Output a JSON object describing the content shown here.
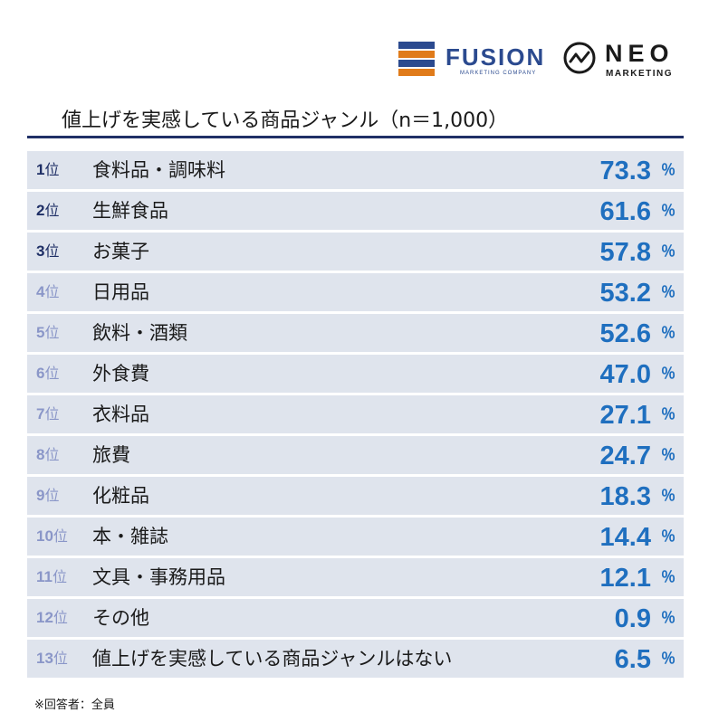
{
  "logos": {
    "fusion": {
      "name": "FUSION",
      "sub": "MARKETING COMPANY"
    },
    "neo": {
      "name": "NEO",
      "sub": "MARKETING"
    }
  },
  "title": "値上げを実感している商品ジャンル（n＝1,000）",
  "rank_unit": "位",
  "percent_sign": "％",
  "footnote": "※回答者：全員",
  "colors": {
    "title_rule": "#1f2f66",
    "row_bg": "#dfe4ed",
    "value": "#1f6fbf",
    "rank_top": "#1f2f66",
    "rank_other": "#8a96c8",
    "fusion_bars": [
      "#2b4a8f",
      "#e07b1a",
      "#2b4a8f",
      "#e07b1a"
    ]
  },
  "chart_data": {
    "type": "table",
    "title": "値上げを実感している商品ジャンル（n＝1,000）",
    "unit": "％",
    "rows": [
      {
        "rank": "1",
        "label": "食料品・調味料",
        "value": "73.3"
      },
      {
        "rank": "2",
        "label": "生鮮食品",
        "value": "61.6"
      },
      {
        "rank": "3",
        "label": "お菓子",
        "value": "57.8"
      },
      {
        "rank": "4",
        "label": "日用品",
        "value": "53.2"
      },
      {
        "rank": "5",
        "label": "飲料・酒類",
        "value": "52.6"
      },
      {
        "rank": "6",
        "label": "外食費",
        "value": "47.0"
      },
      {
        "rank": "7",
        "label": "衣料品",
        "value": "27.1"
      },
      {
        "rank": "8",
        "label": "旅費",
        "value": "24.7"
      },
      {
        "rank": "9",
        "label": "化粧品",
        "value": "18.3"
      },
      {
        "rank": "10",
        "label": "本・雑誌",
        "value": "14.4"
      },
      {
        "rank": "11",
        "label": "文具・事務用品",
        "value": "12.1"
      },
      {
        "rank": "12",
        "label": "その他",
        "value": "0.9"
      },
      {
        "rank": "13",
        "label": "値上げを実感している商品ジャンルはない",
        "value": "6.5"
      }
    ]
  }
}
